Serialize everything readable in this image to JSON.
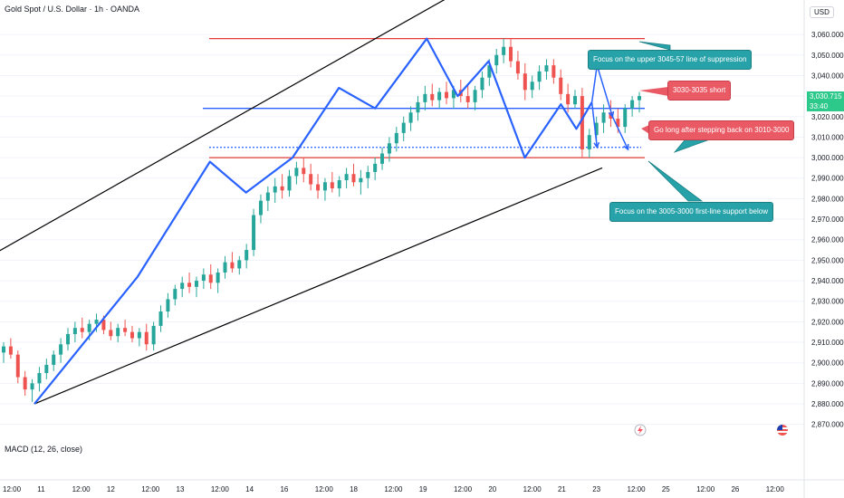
{
  "header": {
    "title": "Gold Spot / U.S. Dollar · 1h · OANDA",
    "currency": "USD",
    "indicator": "MACD (12, 26, close)"
  },
  "current_price": {
    "value": "3,030.715",
    "countdown": "33:40",
    "color": "#2dc98a"
  },
  "annotations": {
    "suppression": "Focus on the upper 3045-57 line of suppression",
    "short": "3030-3035 short",
    "long": "Go long after stepping back on 3010-3000",
    "support": "Focus on the 3005-3000 first-line support below"
  },
  "icons": [
    "lightning-icon",
    "us-flag-icon"
  ],
  "colors": {
    "up": "#26a69a",
    "down": "#ef5350",
    "zigzag": "#2962ff",
    "resistance": "#e53935",
    "channel": "#000000",
    "note_teal": "#26a2a8",
    "note_red": "#ea5a65"
  },
  "chart_data": {
    "type": "candlestick",
    "symbol": "XAUUSD",
    "timeframe": "1h",
    "ylim": [
      2865,
      3068
    ],
    "y_ticks": [
      2870,
      2880,
      2890,
      2900,
      2910,
      2920,
      2930,
      2940,
      2950,
      2960,
      2970,
      2980,
      2990,
      3000,
      3010,
      3020,
      3030,
      3040,
      3050,
      3060
    ],
    "y_tick_labels": [
      "2,870.000",
      "2,880.000",
      "2,890.000",
      "2,900.000",
      "2,910.000",
      "2,920.000",
      "2,930.000",
      "2,940.000",
      "2,950.000",
      "2,960.000",
      "2,970.000",
      "2,980.000",
      "2,990.000",
      "3,000.000",
      "3,010.000",
      "3,020.000",
      "3,030.000",
      "3,040.000",
      "3,050.000",
      "3,060.000"
    ],
    "x_ticks": [
      "12:00",
      "11",
      "12:00",
      "12",
      "12:00",
      "13",
      "12:00",
      "14",
      "16",
      "12:00",
      "18",
      "12:00",
      "19",
      "12:00",
      "20",
      "12:00",
      "21",
      "23",
      "12:00",
      "25",
      "12:00",
      "26",
      "12:00"
    ],
    "zigzag": [
      [
        0.0,
        2880
      ],
      [
        1.0,
        2942
      ],
      [
        1.7,
        2998
      ],
      [
        2.05,
        2983
      ],
      [
        2.5,
        3000
      ],
      [
        2.95,
        3034
      ],
      [
        3.3,
        3024
      ],
      [
        3.8,
        3058
      ],
      [
        4.1,
        3030
      ],
      [
        4.4,
        3047
      ],
      [
        4.75,
        3000
      ],
      [
        5.1,
        3026
      ],
      [
        5.25,
        3014
      ],
      [
        5.4,
        3027
      ]
    ],
    "projections": [
      [
        5.4,
        3027,
        5.45,
        3045
      ],
      [
        5.45,
        3045,
        5.6,
        3020
      ],
      [
        5.6,
        3020,
        5.75,
        3004
      ],
      [
        5.4,
        3027,
        5.45,
        3005
      ]
    ],
    "horizontal_levels": [
      {
        "price": 3058,
        "style": "solid",
        "color": "red"
      },
      {
        "price": 3024,
        "style": "solid",
        "color": "blue"
      },
      {
        "price": 3005,
        "style": "dotted",
        "color": "blue"
      },
      {
        "price": 3000,
        "style": "solid",
        "color": "red"
      }
    ],
    "channel": [
      {
        "from": [
          -0.5,
          2950
        ],
        "to": [
          4.5,
          3092
        ]
      },
      {
        "from": [
          0.0,
          2880
        ],
        "to": [
          5.5,
          2995
        ]
      }
    ],
    "candles": [
      [
        2905,
        2910,
        2900,
        2908
      ],
      [
        2908,
        2912,
        2902,
        2904
      ],
      [
        2904,
        2906,
        2890,
        2893
      ],
      [
        2893,
        2896,
        2884,
        2887
      ],
      [
        2887,
        2892,
        2881,
        2890
      ],
      [
        2890,
        2898,
        2886,
        2895
      ],
      [
        2895,
        2902,
        2892,
        2899
      ],
      [
        2899,
        2906,
        2896,
        2904
      ],
      [
        2904,
        2912,
        2900,
        2909
      ],
      [
        2909,
        2917,
        2906,
        2914
      ],
      [
        2914,
        2920,
        2910,
        2917
      ],
      [
        2917,
        2922,
        2912,
        2915
      ],
      [
        2915,
        2921,
        2911,
        2919
      ],
      [
        2919,
        2924,
        2915,
        2921
      ],
      [
        2921,
        2923,
        2914,
        2916
      ],
      [
        2916,
        2920,
        2911,
        2913
      ],
      [
        2913,
        2919,
        2910,
        2917
      ],
      [
        2917,
        2921,
        2913,
        2915
      ],
      [
        2915,
        2918,
        2910,
        2912
      ],
      [
        2912,
        2917,
        2908,
        2915
      ],
      [
        2915,
        2919,
        2906,
        2909
      ],
      [
        2909,
        2920,
        2906,
        2918
      ],
      [
        2918,
        2928,
        2915,
        2925
      ],
      [
        2925,
        2934,
        2922,
        2931
      ],
      [
        2931,
        2938,
        2928,
        2936
      ],
      [
        2936,
        2942,
        2932,
        2939
      ],
      [
        2939,
        2944,
        2934,
        2937
      ],
      [
        2937,
        2942,
        2932,
        2940
      ],
      [
        2940,
        2946,
        2936,
        2943
      ],
      [
        2943,
        2948,
        2936,
        2939
      ],
      [
        2939,
        2946,
        2934,
        2944
      ],
      [
        2944,
        2952,
        2941,
        2949
      ],
      [
        2949,
        2954,
        2944,
        2946
      ],
      [
        2946,
        2952,
        2943,
        2950
      ],
      [
        2950,
        2958,
        2946,
        2955
      ],
      [
        2955,
        2975,
        2952,
        2972
      ],
      [
        2972,
        2982,
        2968,
        2979
      ],
      [
        2979,
        2986,
        2974,
        2983
      ],
      [
        2983,
        2990,
        2978,
        2986
      ],
      [
        2986,
        2992,
        2980,
        2984
      ],
      [
        2984,
        2994,
        2981,
        2991
      ],
      [
        2991,
        2998,
        2987,
        2995
      ],
      [
        2995,
        3000,
        2988,
        2992
      ],
      [
        2992,
        2997,
        2984,
        2987
      ],
      [
        2987,
        2992,
        2980,
        2984
      ],
      [
        2984,
        2990,
        2979,
        2988
      ],
      [
        2988,
        2993,
        2983,
        2985
      ],
      [
        2985,
        2991,
        2981,
        2989
      ],
      [
        2989,
        2995,
        2985,
        2992
      ],
      [
        2992,
        2997,
        2986,
        2988
      ],
      [
        2988,
        2994,
        2982,
        2990
      ],
      [
        2990,
        2996,
        2985,
        2993
      ],
      [
        2993,
        3000,
        2989,
        2997
      ],
      [
        2997,
        3005,
        2994,
        3002
      ],
      [
        3002,
        3010,
        2998,
        3007
      ],
      [
        3007,
        3015,
        3003,
        3012
      ],
      [
        3012,
        3020,
        3008,
        3017
      ],
      [
        3017,
        3025,
        3013,
        3022
      ],
      [
        3022,
        3030,
        3018,
        3027
      ],
      [
        3027,
        3035,
        3023,
        3031
      ],
      [
        3031,
        3036,
        3025,
        3028
      ],
      [
        3028,
        3034,
        3024,
        3032
      ],
      [
        3032,
        3037,
        3026,
        3029
      ],
      [
        3029,
        3035,
        3024,
        3033
      ],
      [
        3033,
        3038,
        3027,
        3030
      ],
      [
        3030,
        3036,
        3024,
        3027
      ],
      [
        3027,
        3035,
        3023,
        3033
      ],
      [
        3033,
        3042,
        3029,
        3039
      ],
      [
        3039,
        3048,
        3035,
        3045
      ],
      [
        3045,
        3053,
        3041,
        3050
      ],
      [
        3050,
        3058,
        3046,
        3054
      ],
      [
        3054,
        3058,
        3044,
        3047
      ],
      [
        3047,
        3052,
        3038,
        3041
      ],
      [
        3041,
        3046,
        3028,
        3033
      ],
      [
        3033,
        3040,
        3029,
        3037
      ],
      [
        3037,
        3045,
        3033,
        3042
      ],
      [
        3042,
        3048,
        3038,
        3045
      ],
      [
        3045,
        3048,
        3036,
        3039
      ],
      [
        3039,
        3043,
        3028,
        3031
      ],
      [
        3031,
        3036,
        3022,
        3026
      ],
      [
        3026,
        3033,
        3024,
        3030
      ],
      [
        3030,
        3034,
        3000,
        3004
      ],
      [
        3004,
        3014,
        3000,
        3011
      ],
      [
        3011,
        3020,
        3006,
        3017
      ],
      [
        3017,
        3026,
        3012,
        3022
      ],
      [
        3022,
        3028,
        3015,
        3019
      ],
      [
        3019,
        3024,
        3012,
        3015
      ],
      [
        3015,
        3026,
        3012,
        3024
      ],
      [
        3024,
        3030,
        3020,
        3028
      ],
      [
        3028,
        3032,
        3022,
        3030
      ]
    ]
  }
}
